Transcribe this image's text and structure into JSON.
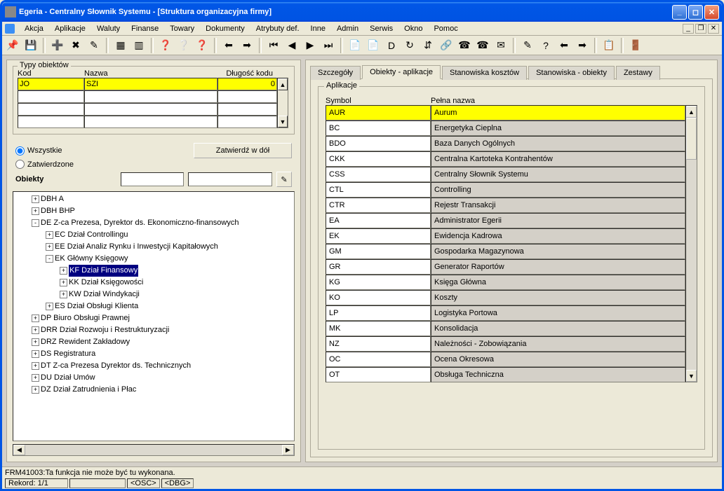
{
  "window": {
    "title": "Egeria - Centralny Słownik Systemu - [Struktura organizacyjna firmy]"
  },
  "menu": {
    "items": [
      "Akcja",
      "Aplikacje",
      "Waluty",
      "Finanse",
      "Towary",
      "Dokumenty",
      "Atrybuty def.",
      "Inne",
      "Admin",
      "Serwis",
      "Okno",
      "Pomoc"
    ]
  },
  "typesBox": {
    "legend": "Typy obiektów",
    "headers": {
      "kod": "Kod",
      "nazwa": "Nazwa",
      "dlugosc": "Długość kodu"
    },
    "row": {
      "kod": "JO",
      "nazwa": "SZI",
      "dlugosc": "0"
    }
  },
  "filter": {
    "allLabel": "Wszystkie",
    "approvedLabel": "Zatwierdzone",
    "approveBtn": "Zatwierdź w dół",
    "objectsLabel": "Obiekty"
  },
  "tree": [
    {
      "depth": 1,
      "toggle": "+",
      "label": "DBH  A"
    },
    {
      "depth": 1,
      "toggle": "+",
      "label": "DBH  BHP"
    },
    {
      "depth": 1,
      "toggle": "-",
      "label": "DE  Z-ca Prezesa, Dyrektor ds. Ekonomiczno-finansowych"
    },
    {
      "depth": 2,
      "toggle": "+",
      "label": "EC  Dział Controllingu"
    },
    {
      "depth": 2,
      "toggle": "+",
      "label": "EE  Dział Analiz Rynku i Inwestycji Kapitałowych"
    },
    {
      "depth": 2,
      "toggle": "-",
      "label": "EK  Główny Księgowy"
    },
    {
      "depth": 3,
      "toggle": "+",
      "label": "KF  Dział Finansowy",
      "selected": true
    },
    {
      "depth": 3,
      "toggle": "+",
      "label": "KK  Dział Księgowości"
    },
    {
      "depth": 3,
      "toggle": "+",
      "label": "KW  Dział Windykacji"
    },
    {
      "depth": 2,
      "toggle": "+",
      "label": "ES  Dział Obsługi Klienta"
    },
    {
      "depth": 1,
      "toggle": "+",
      "label": "DP  Biuro Obsługi Prawnej"
    },
    {
      "depth": 1,
      "toggle": "+",
      "label": "DRR  Dział Rozwoju i Restrukturyzacji"
    },
    {
      "depth": 1,
      "toggle": "+",
      "label": "DRZ  Rewident Zakładowy"
    },
    {
      "depth": 1,
      "toggle": "+",
      "label": "DS  Registratura"
    },
    {
      "depth": 1,
      "toggle": "+",
      "label": "DT  Z-ca Prezesa Dyrektor ds. Technicznych"
    },
    {
      "depth": 1,
      "toggle": "+",
      "label": "DU  Dział Umów"
    },
    {
      "depth": 1,
      "toggle": "+",
      "label": "DZ  Dział Zatrudnienia i Płac"
    }
  ],
  "tabs": {
    "items": [
      "Szczegóły",
      "Obiekty - aplikacje",
      "Stanowiska kosztów",
      "Stanowiska - obiekty",
      "Zestawy"
    ],
    "active": 1
  },
  "apps": {
    "legend": "Aplikacje",
    "headers": {
      "symbol": "Symbol",
      "name": "Pełna nazwa"
    },
    "rows": [
      {
        "sym": "AUR",
        "name": "Aurum",
        "hl": true
      },
      {
        "sym": "BC",
        "name": "Energetyka Cieplna"
      },
      {
        "sym": "BDO",
        "name": "Baza Danych Ogólnych"
      },
      {
        "sym": "CKK",
        "name": "Centralna Kartoteka Kontrahentów"
      },
      {
        "sym": "CSS",
        "name": "Centralny Słownik Systemu"
      },
      {
        "sym": "CTL",
        "name": "Controlling"
      },
      {
        "sym": "CTR",
        "name": "Rejestr Transakcji"
      },
      {
        "sym": "EA",
        "name": "Administrator Egerii"
      },
      {
        "sym": "EK",
        "name": "Ewidencja Kadrowa"
      },
      {
        "sym": "GM",
        "name": "Gospodarka Magazynowa"
      },
      {
        "sym": "GR",
        "name": "Generator Raportów"
      },
      {
        "sym": "KG",
        "name": "Księga Główna"
      },
      {
        "sym": "KO",
        "name": "Koszty"
      },
      {
        "sym": "LP",
        "name": "Logistyka Portowa"
      },
      {
        "sym": "MK",
        "name": "Konsolidacja"
      },
      {
        "sym": "NZ",
        "name": "Należności - Zobowiązania"
      },
      {
        "sym": "OC",
        "name": "Ocena Okresowa"
      },
      {
        "sym": "OT",
        "name": "Obsługa Techniczna"
      }
    ]
  },
  "status": {
    "msg": "FRM41003:Ta funkcja nie może być tu wykonana.",
    "record": "Rekord: 1/1",
    "osc": "<OSC>",
    "dbg": "<DBG>"
  },
  "toolbarIcons": [
    "📌",
    "💾",
    "",
    "➕",
    "✖",
    "✎",
    "",
    "▦",
    "▥",
    "",
    "❓",
    "❔",
    "❓",
    "",
    "⬅",
    "➡",
    "",
    "⏮",
    "◀",
    "▶",
    "⏭",
    "",
    "📄",
    "📄",
    "D",
    "↻",
    "⇵",
    "🔗",
    "☎",
    "☎",
    "✉",
    "",
    "✎",
    "?",
    "⬅",
    "➡",
    "",
    "📋",
    "",
    "🚪"
  ]
}
